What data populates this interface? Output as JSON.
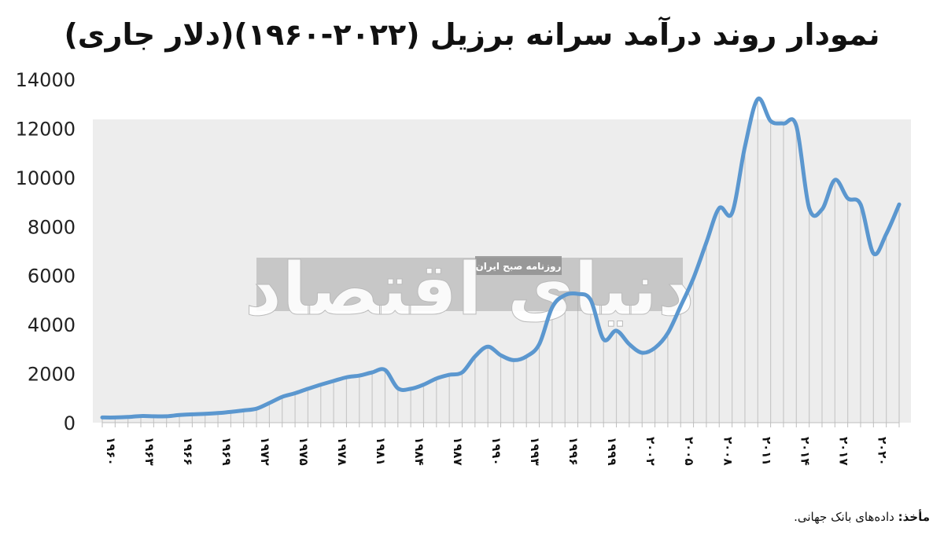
{
  "title": "نمودار روند درآمد سرانه برزیل (۲۰۲۲-۱۹۶۰)(دلار جاری)",
  "source": {
    "label": "مأخذ:",
    "text": "داده‌های بانک جهانی."
  },
  "watermark": {
    "main": "دنیای اقتصاد",
    "sub": "روزنامه صبح ایران"
  },
  "colors": {
    "line": "#5b97cf",
    "grid_bg": "#ededed",
    "stems": "#c8c8c8",
    "watermark_band": "#a8a8a8"
  },
  "chart_data": {
    "type": "line",
    "title": "نمودار روند درآمد سرانه برزیل (۲۰۲۲-۱۹۶۰)(دلار جاری)",
    "xlabel": "",
    "ylabel": "",
    "ylim": [
      0,
      14000
    ],
    "yticks": [
      "0",
      "2000",
      "4000",
      "6000",
      "8000",
      "10000",
      "12000",
      "14000"
    ],
    "xtick_labels": [
      "۱۹۶۰",
      "۱۹۶۳",
      "۱۹۶۶",
      "۱۹۶۹",
      "۱۹۷۲",
      "۱۹۷۵",
      "۱۹۷۸",
      "۱۹۸۱",
      "۱۹۸۴",
      "۱۹۸۷",
      "۱۹۹۰",
      "۱۹۹۳",
      "۱۹۹۶",
      "۱۹۹۹",
      "۲۰۰۲",
      "۲۰۰۵",
      "۲۰۰۸",
      "۲۰۱۱",
      "۲۰۱۴",
      "۲۰۱۷",
      "۲۰۲۰"
    ],
    "x": [
      1960,
      1961,
      1962,
      1963,
      1964,
      1965,
      1966,
      1967,
      1968,
      1969,
      1970,
      1971,
      1972,
      1973,
      1974,
      1975,
      1976,
      1977,
      1978,
      1979,
      1980,
      1981,
      1982,
      1983,
      1984,
      1985,
      1986,
      1987,
      1988,
      1989,
      1990,
      1991,
      1992,
      1993,
      1994,
      1995,
      1996,
      1997,
      1998,
      1999,
      2000,
      2001,
      2002,
      2003,
      2004,
      2005,
      2006,
      2007,
      2008,
      2009,
      2010,
      2011,
      2012,
      2013,
      2014,
      2015,
      2016,
      2017,
      2018,
      2019,
      2020,
      2021,
      2022
    ],
    "values": [
      210,
      210,
      230,
      270,
      260,
      260,
      310,
      340,
      360,
      390,
      440,
      500,
      570,
      800,
      1050,
      1200,
      1380,
      1550,
      1700,
      1850,
      1920,
      2050,
      2150,
      1400,
      1380,
      1550,
      1800,
      1950,
      2050,
      2700,
      3100,
      2750,
      2550,
      2700,
      3200,
      4700,
      5200,
      5250,
      5000,
      3400,
      3750,
      3200,
      2850,
      3050,
      3650,
      4750,
      5900,
      7350,
      8750,
      8550,
      11250,
      13200,
      12300,
      12200,
      12100,
      8750,
      8700,
      9900,
      9150,
      8900,
      6900,
      7700,
      8900
    ]
  }
}
